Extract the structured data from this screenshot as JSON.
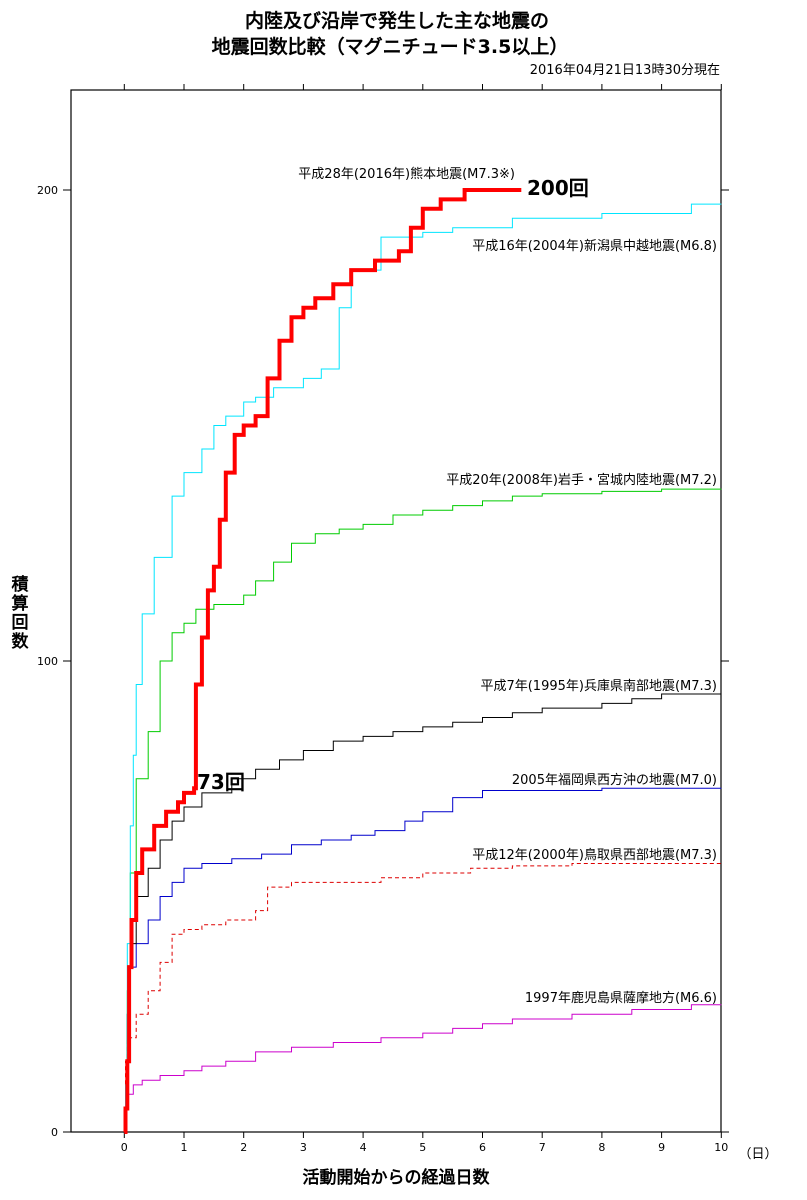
{
  "chart_data": {
    "type": "line",
    "title_line1": "内陸及び沿岸で発生した主な地震の",
    "title_line2": "地震回数比較（マグニチュード3.5以上）",
    "timestamp": "2016年04月21日13時30分現在",
    "xlabel": "活動開始からの経過日数",
    "xunit": "（日）",
    "ylabel": "積算回数",
    "xlim": [
      -0.9,
      10
    ],
    "ylim": [
      0,
      221
    ],
    "x_ticks": [
      0,
      1,
      2,
      3,
      4,
      5,
      6,
      7,
      8,
      9,
      10
    ],
    "y_ticks": [
      0,
      100,
      200
    ],
    "grid": false,
    "annotations": [
      {
        "text": "200回",
        "x": 6.75,
        "y": 200
      },
      {
        "text": "73回",
        "x": 1.2,
        "y": 73
      }
    ],
    "series": [
      {
        "name": "平成28年(2016年)熊本地震(M7.3※)",
        "color": "#ff0000",
        "width": 4,
        "dash": "",
        "points": [
          [
            0,
            0
          ],
          [
            0.02,
            5
          ],
          [
            0.05,
            15
          ],
          [
            0.08,
            35
          ],
          [
            0.12,
            45
          ],
          [
            0.2,
            55
          ],
          [
            0.3,
            60
          ],
          [
            0.5,
            65
          ],
          [
            0.7,
            68
          ],
          [
            0.9,
            70
          ],
          [
            1.0,
            72
          ],
          [
            1.17,
            73
          ],
          [
            1.2,
            95
          ],
          [
            1.3,
            105
          ],
          [
            1.4,
            115
          ],
          [
            1.5,
            120
          ],
          [
            1.6,
            130
          ],
          [
            1.7,
            140
          ],
          [
            1.85,
            148
          ],
          [
            2.0,
            150
          ],
          [
            2.2,
            152
          ],
          [
            2.4,
            160
          ],
          [
            2.6,
            168
          ],
          [
            2.8,
            173
          ],
          [
            3.0,
            175
          ],
          [
            3.2,
            177
          ],
          [
            3.5,
            180
          ],
          [
            3.8,
            183
          ],
          [
            4.2,
            185
          ],
          [
            4.6,
            187
          ],
          [
            4.8,
            192
          ],
          [
            5.0,
            196
          ],
          [
            5.3,
            198
          ],
          [
            5.7,
            200
          ],
          [
            6.65,
            200
          ]
        ]
      },
      {
        "name": "平成16年(2004年)新潟県中越地震(M6.8)",
        "color": "#00e5ff",
        "width": 1,
        "dash": "",
        "points": [
          [
            0,
            0
          ],
          [
            0.02,
            10
          ],
          [
            0.05,
            40
          ],
          [
            0.1,
            65
          ],
          [
            0.15,
            80
          ],
          [
            0.2,
            95
          ],
          [
            0.3,
            110
          ],
          [
            0.5,
            122
          ],
          [
            0.8,
            135
          ],
          [
            1.0,
            140
          ],
          [
            1.3,
            145
          ],
          [
            1.5,
            150
          ],
          [
            1.7,
            152
          ],
          [
            2.0,
            155
          ],
          [
            2.2,
            156
          ],
          [
            2.5,
            158
          ],
          [
            3.0,
            160
          ],
          [
            3.3,
            162
          ],
          [
            3.6,
            175
          ],
          [
            3.8,
            183
          ],
          [
            4.3,
            190
          ],
          [
            5.0,
            191
          ],
          [
            5.5,
            192
          ],
          [
            6.5,
            194
          ],
          [
            8.0,
            195
          ],
          [
            9.5,
            197
          ],
          [
            10,
            197
          ]
        ]
      },
      {
        "name": "平成20年(2008年)岩手・宮城内陸地震(M7.2)",
        "color": "#00cc00",
        "width": 1,
        "dash": "",
        "points": [
          [
            0,
            0
          ],
          [
            0.02,
            10
          ],
          [
            0.05,
            30
          ],
          [
            0.1,
            55
          ],
          [
            0.2,
            75
          ],
          [
            0.4,
            85
          ],
          [
            0.6,
            100
          ],
          [
            0.8,
            106
          ],
          [
            1.0,
            108
          ],
          [
            1.2,
            111
          ],
          [
            1.5,
            112
          ],
          [
            2.0,
            114
          ],
          [
            2.2,
            117
          ],
          [
            2.5,
            121
          ],
          [
            2.8,
            125
          ],
          [
            3.2,
            127
          ],
          [
            3.6,
            128
          ],
          [
            4.0,
            129
          ],
          [
            4.5,
            131
          ],
          [
            5.0,
            132
          ],
          [
            5.5,
            133
          ],
          [
            6.0,
            134
          ],
          [
            6.5,
            135
          ],
          [
            7.0,
            135.5
          ],
          [
            8.0,
            136
          ],
          [
            9.0,
            136.5
          ],
          [
            10,
            136.5
          ]
        ]
      },
      {
        "name": "平成7年(1995年)兵庫県南部地震(M7.3)",
        "color": "#000000",
        "width": 1,
        "dash": "",
        "points": [
          [
            0,
            0
          ],
          [
            0.02,
            10
          ],
          [
            0.05,
            25
          ],
          [
            0.1,
            40
          ],
          [
            0.2,
            50
          ],
          [
            0.4,
            56
          ],
          [
            0.6,
            62
          ],
          [
            0.8,
            66
          ],
          [
            1.0,
            69
          ],
          [
            1.3,
            72
          ],
          [
            1.8,
            75
          ],
          [
            2.2,
            77
          ],
          [
            2.6,
            79
          ],
          [
            3.0,
            81
          ],
          [
            3.5,
            83
          ],
          [
            4.0,
            84
          ],
          [
            4.5,
            85
          ],
          [
            5.0,
            86
          ],
          [
            5.5,
            87
          ],
          [
            6.0,
            88
          ],
          [
            6.5,
            89
          ],
          [
            7.0,
            90
          ],
          [
            8.0,
            91
          ],
          [
            8.5,
            92
          ],
          [
            9.0,
            93
          ],
          [
            10,
            93
          ]
        ]
      },
      {
        "name": "2005年福岡県西方沖の地震(M7.0)",
        "color": "#0000cc",
        "width": 1,
        "dash": "",
        "points": [
          [
            0,
            0
          ],
          [
            0.02,
            10
          ],
          [
            0.05,
            25
          ],
          [
            0.1,
            35
          ],
          [
            0.2,
            40
          ],
          [
            0.4,
            45
          ],
          [
            0.6,
            50
          ],
          [
            0.8,
            53
          ],
          [
            1.0,
            56
          ],
          [
            1.3,
            57
          ],
          [
            1.8,
            58
          ],
          [
            2.3,
            59
          ],
          [
            2.8,
            61
          ],
          [
            3.3,
            62
          ],
          [
            3.8,
            63
          ],
          [
            4.2,
            64
          ],
          [
            4.7,
            66
          ],
          [
            5.0,
            68
          ],
          [
            5.5,
            71
          ],
          [
            6.0,
            72.5
          ],
          [
            7.0,
            72.5
          ],
          [
            8.0,
            73
          ],
          [
            9.0,
            73
          ],
          [
            10,
            73
          ]
        ]
      },
      {
        "name": "平成12年(2000年)鳥取県西部地震(M7.3)",
        "color": "#dd0000",
        "width": 1,
        "dash": "4,3",
        "points": [
          [
            0,
            0
          ],
          [
            0.02,
            15
          ],
          [
            0.05,
            20
          ],
          [
            0.2,
            25
          ],
          [
            0.4,
            30
          ],
          [
            0.6,
            36
          ],
          [
            0.8,
            42
          ],
          [
            1.0,
            43
          ],
          [
            1.3,
            44
          ],
          [
            1.7,
            45
          ],
          [
            2.2,
            47
          ],
          [
            2.4,
            52
          ],
          [
            2.8,
            53
          ],
          [
            3.5,
            53
          ],
          [
            4.3,
            54
          ],
          [
            5.0,
            55
          ],
          [
            5.8,
            56
          ],
          [
            6.5,
            56.5
          ],
          [
            7.5,
            57
          ],
          [
            10,
            57
          ]
        ]
      },
      {
        "name": "1997年鹿児島県薩摩地方(M6.6)",
        "color": "#cc00cc",
        "width": 1,
        "dash": "",
        "points": [
          [
            0,
            0
          ],
          [
            0.02,
            5
          ],
          [
            0.05,
            8
          ],
          [
            0.15,
            10
          ],
          [
            0.3,
            11
          ],
          [
            0.6,
            12
          ],
          [
            1.0,
            13
          ],
          [
            1.3,
            14
          ],
          [
            1.7,
            15
          ],
          [
            2.2,
            17
          ],
          [
            2.8,
            18
          ],
          [
            3.5,
            19
          ],
          [
            4.3,
            20
          ],
          [
            5.0,
            21
          ],
          [
            5.5,
            22
          ],
          [
            6.0,
            23
          ],
          [
            6.5,
            24
          ],
          [
            7.5,
            25
          ],
          [
            8.5,
            26
          ],
          [
            9.5,
            27
          ],
          [
            10,
            27
          ]
        ]
      }
    ]
  }
}
